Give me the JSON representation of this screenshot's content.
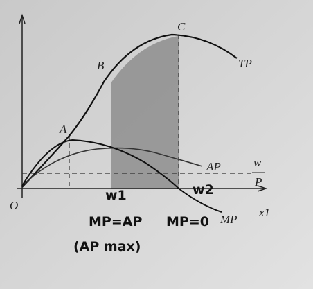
{
  "labels": {
    "origin": "O",
    "point_a": "A",
    "point_b": "B",
    "point_c": "C",
    "tp": "TP",
    "ap": "AP",
    "mp": "MP",
    "wage_num": "w",
    "wage_den": "P",
    "x_axis": "x1"
  },
  "handwriting": {
    "w1": "w1",
    "w2": "w2",
    "mp_ap": "MP=AP",
    "mp_zero": "MP=0",
    "ap_max": "(AP max)"
  }
}
